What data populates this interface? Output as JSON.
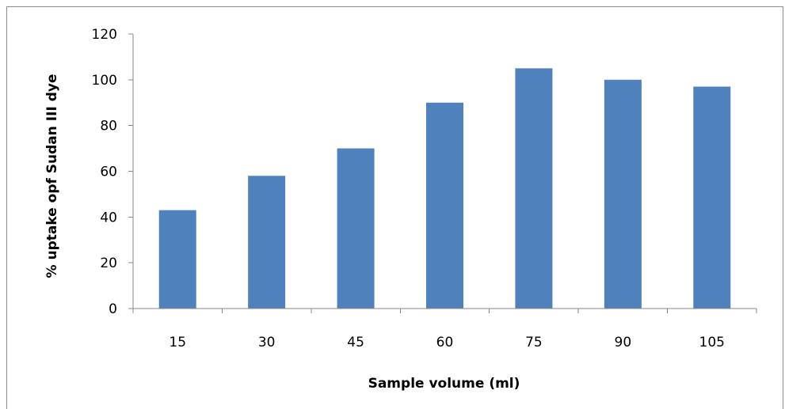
{
  "chart_data": {
    "type": "bar",
    "title": "",
    "xlabel": "Sample volume (ml)",
    "ylabel": "% uptake opf Sudan III dye",
    "categories": [
      "15",
      "30",
      "45",
      "60",
      "75",
      "90",
      "105"
    ],
    "values": [
      43,
      58,
      70,
      90,
      105,
      100,
      97
    ],
    "ylim": [
      0,
      120
    ],
    "yticks": [
      "0",
      "20",
      "40",
      "60",
      "80",
      "100",
      "120"
    ],
    "grid": false,
    "legend": "none",
    "bar_color": "#4f81bd",
    "axis_color": "#878787"
  }
}
